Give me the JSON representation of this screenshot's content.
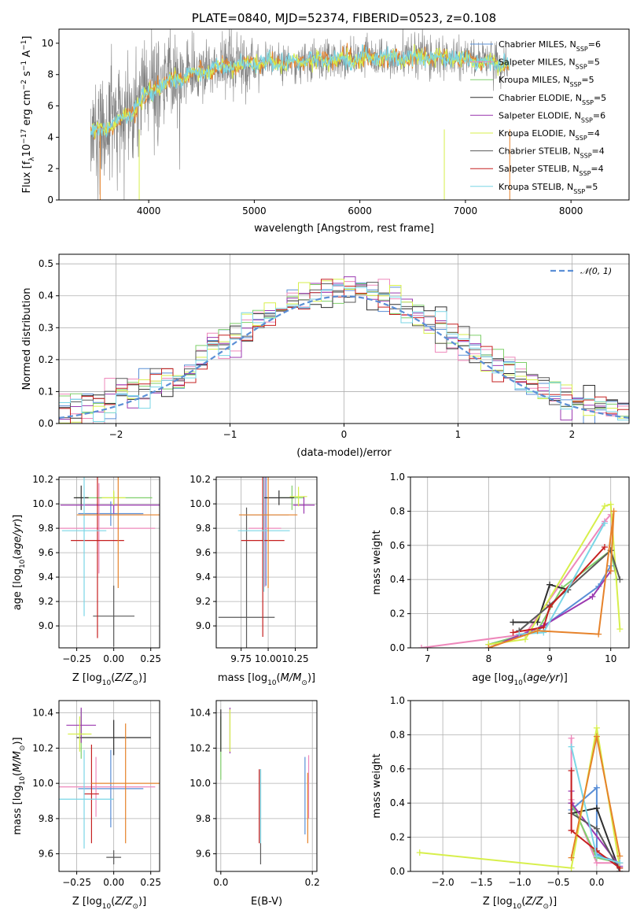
{
  "colors": {
    "chabrier_miles": "#5a8fd6",
    "salpeter_miles": "#ee88bb",
    "kroupa_miles": "#7fcf6a",
    "chabrier_elodie": "#2f2f2f",
    "salpeter_elodie": "#9b39b0",
    "kroupa_elodie": "#d7ef4b",
    "chabrier_stelib": "#5a5a5a",
    "salpeter_stelib": "#c62020",
    "kroupa_stelib": "#7ad6e6",
    "orange": "#e6822a",
    "data": "#808080",
    "normal": "#5b8fd6"
  },
  "chart_data": [
    {
      "id": "spectrum",
      "type": "line",
      "title": "PLATE=0840, MJD=52374, FIBERID=0523, z=0.108",
      "xlabel": "wavelength [Angstrom, rest frame]",
      "ylabel": "Flux [fλ10⁻¹⁷ erg cm⁻² s⁻¹ A⁻¹]",
      "xlim": [
        3150,
        8550
      ],
      "ylim": [
        0,
        10.9
      ],
      "xticks": [
        4000,
        5000,
        6000,
        7000,
        8000
      ],
      "yticks": [
        0,
        2,
        4,
        6,
        8,
        10
      ],
      "legend_position": "upper-right",
      "legend": [
        {
          "key": "chabrier_miles",
          "text": "Chabrier MILES, N",
          "sub": "SSP",
          "rest": "=6"
        },
        {
          "key": "salpeter_miles",
          "text": "Salpeter MILES, N",
          "sub": "SSP",
          "rest": "=5"
        },
        {
          "key": "kroupa_miles",
          "text": "Kroupa MILES, N",
          "sub": "SSP",
          "rest": "=5"
        },
        {
          "key": "chabrier_elodie",
          "text": "Chabrier ELODIE, N",
          "sub": "SSP",
          "rest": "=5"
        },
        {
          "key": "salpeter_elodie",
          "text": "Salpeter ELODIE, N",
          "sub": "SSP",
          "rest": "=6"
        },
        {
          "key": "kroupa_elodie",
          "text": "Kroupa ELODIE, N",
          "sub": "SSP",
          "rest": "=4"
        },
        {
          "key": "chabrier_stelib",
          "text": "Chabrier STELIB, N",
          "sub": "SSP",
          "rest": "=4"
        },
        {
          "key": "salpeter_stelib",
          "text": "Salpeter STELIB, N",
          "sub": "SSP",
          "rest": "=4"
        },
        {
          "key": "kroupa_stelib",
          "text": "Kroupa STELIB, N",
          "sub": "SSP",
          "rest": "=5"
        }
      ],
      "continuum": [
        [
          3450,
          4.3
        ],
        [
          3600,
          4.6
        ],
        [
          3700,
          5.0
        ],
        [
          3850,
          5.6
        ],
        [
          3950,
          6.5
        ],
        [
          4100,
          7.3
        ],
        [
          4300,
          7.8
        ],
        [
          4500,
          8.2
        ],
        [
          4800,
          8.6
        ],
        [
          5000,
          8.7
        ],
        [
          5300,
          8.8
        ],
        [
          5600,
          8.9
        ],
        [
          5900,
          9.0
        ],
        [
          6200,
          9.1
        ],
        [
          6500,
          9.1
        ],
        [
          6800,
          9.1
        ],
        [
          7100,
          8.9
        ],
        [
          7400,
          8.6
        ]
      ],
      "model_range": [
        3450,
        7420
      ]
    },
    {
      "id": "residuals",
      "type": "line",
      "xlabel": "(data-model)/error",
      "ylabel": "Normed distribution",
      "xlim": [
        -2.5,
        2.5
      ],
      "ylim": [
        0,
        0.53
      ],
      "xticks": [
        -2,
        -1,
        0,
        1,
        2
      ],
      "yticks": [
        0.0,
        0.1,
        0.2,
        0.3,
        0.4,
        0.5
      ],
      "legend_position": "upper-right",
      "legend": [
        {
          "key": "normal",
          "text": "𝒩(0, 1)"
        }
      ],
      "mean": 0.0,
      "sigma": 1.0,
      "bin_width": 0.1
    },
    {
      "id": "age-vs-Z",
      "type": "scatter",
      "xlabel": "Z [log₁₀(Z/Z⊙)]",
      "ylabel": "age  [log₁₀(age/yr)]",
      "xlim": [
        -0.37,
        0.31
      ],
      "ylim": [
        8.82,
        10.22
      ],
      "xticks": [
        -0.25,
        0.0,
        0.25
      ],
      "yticks": [
        9.0,
        9.2,
        9.4,
        9.6,
        9.8,
        10.0,
        10.2
      ],
      "points": [
        {
          "key": "chabrier_miles",
          "x": -0.02,
          "xe": 0.22,
          "y": 9.92,
          "ye": 0.1
        },
        {
          "key": "salpeter_miles",
          "x": -0.1,
          "xe": 0.38,
          "y": 9.8,
          "ye": 0.37
        },
        {
          "key": "kroupa_miles",
          "x": 0.0,
          "xe": 0.26,
          "y": 10.05,
          "ye": 0.05
        },
        {
          "key": "chabrier_elodie",
          "x": -0.22,
          "xe": 0.05,
          "y": 10.05,
          "ye": 0.1
        },
        {
          "key": "salpeter_elodie",
          "x": 0.0,
          "xe": 0.36,
          "y": 9.99,
          "ye": 0.07
        },
        {
          "key": "kroupa_elodie",
          "x": 0.0,
          "xe": 0.08,
          "y": 10.05,
          "ye": 0.06
        },
        {
          "key": "chabrier_stelib",
          "x": 0.0,
          "xe": 0.14,
          "y": 9.08,
          "ye": 0.25
        },
        {
          "key": "salpeter_stelib",
          "x": -0.11,
          "xe": 0.18,
          "y": 9.7,
          "ye": 0.8
        },
        {
          "key": "kroupa_stelib",
          "x": -0.2,
          "xe": 0.15,
          "y": 9.78,
          "ye": 0.7
        },
        {
          "key": "orange",
          "x": 0.03,
          "xe": 0.28,
          "y": 9.91,
          "ye": 0.6
        }
      ]
    },
    {
      "id": "age-vs-mass",
      "type": "scatter",
      "xlabel": "mass [log₁₀(M/M⊙)]",
      "xlim": [
        9.52,
        10.45
      ],
      "ylim": [
        8.82,
        10.22
      ],
      "xticks": [
        9.5,
        9.75,
        10.0,
        10.25
      ],
      "xticklabels": [
        "9.50",
        "9.75",
        "10.00",
        "10.25"
      ],
      "yticks": [
        9.0,
        9.2,
        9.4,
        9.6,
        9.8,
        10.0,
        10.2
      ],
      "points": [
        {
          "key": "chabrier_miles",
          "x": 9.98,
          "xe": 0.21,
          "y": 9.91,
          "ye": 0.58
        },
        {
          "key": "salpeter_miles",
          "x": 9.97,
          "xe": 0.15,
          "y": 9.8,
          "ye": 0.48
        },
        {
          "key": "kroupa_miles",
          "x": 10.22,
          "xe": 0.11,
          "y": 10.05,
          "ye": 0.1
        },
        {
          "key": "chabrier_elodie",
          "x": 10.1,
          "xe": 0.14,
          "y": 10.05,
          "ye": 0.06
        },
        {
          "key": "salpeter_elodie",
          "x": 10.33,
          "xe": 0.1,
          "y": 9.99,
          "ye": 0.07
        },
        {
          "key": "kroupa_elodie",
          "x": 10.28,
          "xe": 0.08,
          "y": 10.06,
          "ye": 0.08
        },
        {
          "key": "chabrier_stelib",
          "x": 9.8,
          "xe": 0.26,
          "y": 9.07,
          "ye": 0.9
        },
        {
          "key": "salpeter_stelib",
          "x": 9.95,
          "xe": 0.2,
          "y": 9.7,
          "ye": 0.79
        },
        {
          "key": "kroupa_stelib",
          "x": 9.96,
          "xe": 0.24,
          "y": 9.78,
          "ye": 0.5
        },
        {
          "key": "orange",
          "x": 10.0,
          "xe": 0.27,
          "y": 9.91,
          "ye": 0.6
        }
      ]
    },
    {
      "id": "weight-vs-age",
      "type": "line",
      "xlabel": "age  [log₁₀(age/yr)]",
      "ylabel": "mass weight",
      "xlim": [
        6.72,
        10.3
      ],
      "ylim": [
        0,
        1.0
      ],
      "xticks": [
        7,
        8,
        9,
        10
      ],
      "yticks": [
        0.0,
        0.2,
        0.4,
        0.6,
        0.8,
        1.0
      ],
      "series": [
        {
          "key": "chabrier_miles",
          "x": [
            8.0,
            8.8,
            9.8,
            10.0
          ],
          "y": [
            0.02,
            0.1,
            0.36,
            0.48
          ]
        },
        {
          "key": "salpeter_miles",
          "x": [
            6.9,
            8.6,
            9.9,
            10.0
          ],
          "y": [
            0.0,
            0.08,
            0.74,
            0.78
          ]
        },
        {
          "key": "kroupa_miles",
          "x": [
            8.0,
            8.8,
            9.2,
            10.0,
            10.1
          ],
          "y": [
            0.02,
            0.1,
            0.35,
            0.57,
            0.4
          ]
        },
        {
          "key": "chabrier_elodie",
          "x": [
            8.4,
            8.8,
            9.0,
            9.3
          ],
          "y": [
            0.15,
            0.15,
            0.37,
            0.34
          ]
        },
        {
          "key": "salpeter_elodie",
          "x": [
            8.0,
            8.9,
            9.7,
            10.0
          ],
          "y": [
            0.0,
            0.13,
            0.3,
            0.45
          ]
        },
        {
          "key": "kroupa_elodie",
          "x": [
            8.0,
            8.6,
            9.9,
            10.0,
            10.15
          ],
          "y": [
            0.02,
            0.05,
            0.83,
            0.84,
            0.11
          ]
        },
        {
          "key": "chabrier_stelib",
          "x": [
            8.5,
            9.0,
            10.0,
            10.15
          ],
          "y": [
            0.1,
            0.25,
            0.57,
            0.4
          ]
        },
        {
          "key": "salpeter_stelib",
          "x": [
            8.4,
            8.9,
            9.0,
            9.9
          ],
          "y": [
            0.09,
            0.12,
            0.24,
            0.59
          ]
        },
        {
          "key": "kroupa_stelib",
          "x": [
            8.5,
            8.9,
            9.9
          ],
          "y": [
            0.08,
            0.09,
            0.73
          ]
        },
        {
          "key": "orange",
          "x": [
            8.0,
            8.8,
            9.8,
            10.05,
            10.0
          ],
          "y": [
            0.0,
            0.1,
            0.08,
            0.8,
            0.45
          ]
        }
      ]
    },
    {
      "id": "mass-vs-Z",
      "type": "scatter",
      "xlabel": "Z [log₁₀(Z/Z⊙)]",
      "ylabel": "mass [log₁₀(M/M⊙)]",
      "xlim": [
        -0.37,
        0.31
      ],
      "ylim": [
        9.5,
        10.47
      ],
      "xticks": [
        -0.25,
        0.0,
        0.25
      ],
      "yticks": [
        9.6,
        9.8,
        10.0,
        10.2,
        10.4
      ],
      "points": [
        {
          "key": "chabrier_miles",
          "x": -0.02,
          "xe": 0.22,
          "y": 9.97,
          "ye": 0.22
        },
        {
          "key": "salpeter_miles",
          "x": -0.12,
          "xe": 0.4,
          "y": 9.98,
          "ye": 0.17
        },
        {
          "key": "kroupa_miles",
          "x": -0.22,
          "xe": 0.03,
          "y": 10.28,
          "ye": 0.14
        },
        {
          "key": "chabrier_elodie",
          "x": 0.0,
          "xe": 0.25,
          "y": 10.26,
          "ye": 0.1
        },
        {
          "key": "salpeter_elodie",
          "x": -0.22,
          "xe": 0.1,
          "y": 10.33,
          "ye": 0.1
        },
        {
          "key": "kroupa_elodie",
          "x": -0.23,
          "xe": 0.08,
          "y": 10.28,
          "ye": 0.1
        },
        {
          "key": "chabrier_stelib",
          "x": 0.0,
          "xe": 0.05,
          "y": 9.58,
          "ye": 0.04
        },
        {
          "key": "salpeter_stelib",
          "x": -0.15,
          "xe": 0.05,
          "y": 9.94,
          "ye": 0.28
        },
        {
          "key": "kroupa_stelib",
          "x": -0.2,
          "xe": 0.2,
          "y": 9.91,
          "ye": 0.28
        },
        {
          "key": "orange",
          "x": 0.08,
          "xe": 0.23,
          "y": 10.0,
          "ye": 0.34
        }
      ]
    },
    {
      "id": "mass-vs-ebv",
      "type": "scatter",
      "xlabel": "E(B-V)",
      "xlim": [
        -0.01,
        0.21
      ],
      "ylim": [
        9.5,
        10.47
      ],
      "xticks": [
        0.0,
        0.2
      ],
      "yticks": [
        9.6,
        9.8,
        10.0,
        10.2,
        10.4
      ],
      "points": [
        {
          "key": "chabrier_miles",
          "x": 0.184,
          "y": 9.93,
          "ye": 0.22
        },
        {
          "key": "salpeter_miles",
          "x": 0.192,
          "y": 9.98,
          "ye": 0.18
        },
        {
          "key": "kroupa_miles",
          "x": 0.0,
          "y": 10.2,
          "ye": 0.18
        },
        {
          "key": "chabrier_elodie",
          "x": 0.0,
          "y": 10.3,
          "ye": 0.12
        },
        {
          "key": "salpeter_elodie",
          "x": 0.02,
          "y": 10.3,
          "ye": 0.13
        },
        {
          "key": "kroupa_elodie",
          "x": 0.02,
          "y": 10.3,
          "ye": 0.12
        },
        {
          "key": "chabrier_stelib",
          "x": 0.087,
          "y": 9.81,
          "ye": 0.27
        },
        {
          "key": "salpeter_stelib",
          "x": 0.084,
          "y": 9.87,
          "ye": 0.21
        },
        {
          "key": "kroupa_stelib",
          "x": 0.087,
          "y": 9.87,
          "ye": 0.21
        },
        {
          "key": "orange",
          "x": 0.19,
          "y": 9.86,
          "ye": 0.2
        }
      ]
    },
    {
      "id": "weight-vs-Z",
      "type": "line",
      "xlabel": "Z [log₁₀(Z/Z⊙)]",
      "ylabel": "mass weight",
      "xlim": [
        -2.42,
        0.42
      ],
      "ylim": [
        0,
        1.0
      ],
      "xticks": [
        -2.0,
        -1.5,
        -1.0,
        -0.5,
        0.0
      ],
      "yticks": [
        0.0,
        0.2,
        0.4,
        0.6,
        0.8,
        1.0
      ],
      "series": [
        {
          "key": "chabrier_miles",
          "x": [
            -0.33,
            0.0,
            0.0,
            0.3
          ],
          "y": [
            0.36,
            0.49,
            0.1,
            0.05
          ]
        },
        {
          "key": "salpeter_miles",
          "x": [
            -0.33,
            -0.33,
            0.0,
            0.3
          ],
          "y": [
            0.78,
            0.42,
            0.05,
            0.05
          ]
        },
        {
          "key": "kroupa_miles",
          "x": [
            -0.33,
            0.0,
            0.3
          ],
          "y": [
            0.4,
            0.08,
            0.05
          ]
        },
        {
          "key": "chabrier_elodie",
          "x": [
            -0.33,
            -0.33,
            0.0,
            0.3
          ],
          "y": [
            0.4,
            0.34,
            0.37,
            0.0
          ]
        },
        {
          "key": "salpeter_elodie",
          "x": [
            -0.33,
            -0.33,
            0.3
          ],
          "y": [
            0.47,
            0.4,
            0.03
          ]
        },
        {
          "key": "kroupa_elodie",
          "x": [
            -2.3,
            -0.33,
            0.0,
            0.3
          ],
          "y": [
            0.11,
            0.02,
            0.84,
            0.02
          ]
        },
        {
          "key": "chabrier_stelib",
          "x": [
            -0.33,
            0.0,
            0.3
          ],
          "y": [
            0.34,
            0.25,
            0.0
          ]
        },
        {
          "key": "salpeter_stelib",
          "x": [
            -0.33,
            -0.33,
            0.0,
            0.3
          ],
          "y": [
            0.59,
            0.24,
            0.12,
            0.02
          ]
        },
        {
          "key": "kroupa_stelib",
          "x": [
            -0.33,
            0.0,
            0.3
          ],
          "y": [
            0.73,
            0.09,
            0.05
          ]
        },
        {
          "key": "orange",
          "x": [
            -0.33,
            0.0,
            0.3
          ],
          "y": [
            0.08,
            0.79,
            0.09
          ]
        }
      ]
    }
  ]
}
